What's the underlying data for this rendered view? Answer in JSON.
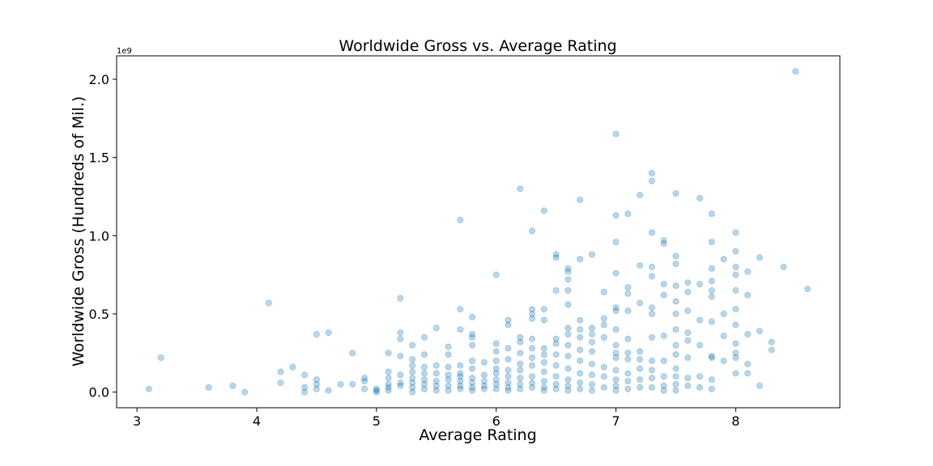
{
  "chart_data": {
    "type": "scatter",
    "title": "Worldwide Gross vs. Average Rating",
    "xlabel": "Average Rating",
    "ylabel": "Worldwide Gross (Hundreds of Mil.)",
    "y_offset_label": "1e9",
    "xlim": [
      2.83,
      8.87
    ],
    "ylim": [
      -0.1,
      2.15
    ],
    "x_ticks": [
      3,
      4,
      5,
      6,
      7,
      8
    ],
    "y_ticks": [
      0.0,
      0.5,
      1.0,
      1.5,
      2.0
    ],
    "x_tick_labels": [
      "3",
      "4",
      "5",
      "6",
      "7",
      "8"
    ],
    "y_tick_labels": [
      "0.0",
      "0.5",
      "1.0",
      "1.5",
      "2.0"
    ],
    "grid": false,
    "legend": "none",
    "point_color": "#1f77b4",
    "point_alpha": 0.3,
    "points": [
      [
        3.1,
        0.02
      ],
      [
        3.2,
        0.22
      ],
      [
        3.6,
        0.03
      ],
      [
        3.8,
        0.04
      ],
      [
        3.9,
        0.0
      ],
      [
        4.1,
        0.57
      ],
      [
        4.2,
        0.06
      ],
      [
        4.2,
        0.13
      ],
      [
        4.3,
        0.16
      ],
      [
        4.4,
        0.11
      ],
      [
        4.4,
        0.03
      ],
      [
        4.4,
        0.0
      ],
      [
        4.5,
        0.37
      ],
      [
        4.5,
        0.08
      ],
      [
        4.5,
        0.05
      ],
      [
        4.5,
        0.02
      ],
      [
        4.6,
        0.38
      ],
      [
        4.6,
        0.01
      ],
      [
        4.7,
        0.05
      ],
      [
        4.8,
        0.25
      ],
      [
        4.8,
        0.05
      ],
      [
        4.9,
        0.09
      ],
      [
        4.9,
        0.07
      ],
      [
        4.9,
        0.02
      ],
      [
        5.0,
        0.02
      ],
      [
        5.0,
        0.01
      ],
      [
        5.0,
        0.0
      ],
      [
        5.1,
        0.25
      ],
      [
        5.1,
        0.13
      ],
      [
        5.1,
        0.09
      ],
      [
        5.1,
        0.05
      ],
      [
        5.1,
        0.03
      ],
      [
        5.1,
        0.01
      ],
      [
        5.2,
        0.6
      ],
      [
        5.2,
        0.38
      ],
      [
        5.2,
        0.34
      ],
      [
        5.2,
        0.23
      ],
      [
        5.2,
        0.11
      ],
      [
        5.2,
        0.06
      ],
      [
        5.2,
        0.04
      ],
      [
        5.3,
        0.3
      ],
      [
        5.3,
        0.21
      ],
      [
        5.3,
        0.17
      ],
      [
        5.3,
        0.13
      ],
      [
        5.3,
        0.09
      ],
      [
        5.3,
        0.06
      ],
      [
        5.3,
        0.03
      ],
      [
        5.3,
        0.0
      ],
      [
        5.4,
        0.35
      ],
      [
        5.4,
        0.24
      ],
      [
        5.4,
        0.16
      ],
      [
        5.4,
        0.12
      ],
      [
        5.4,
        0.08
      ],
      [
        5.4,
        0.05
      ],
      [
        5.4,
        0.02
      ],
      [
        5.5,
        0.41
      ],
      [
        5.5,
        0.17
      ],
      [
        5.5,
        0.12
      ],
      [
        5.5,
        0.07
      ],
      [
        5.5,
        0.04
      ],
      [
        5.5,
        0.01
      ],
      [
        5.6,
        0.29
      ],
      [
        5.6,
        0.24
      ],
      [
        5.6,
        0.16
      ],
      [
        5.6,
        0.11
      ],
      [
        5.6,
        0.08
      ],
      [
        5.6,
        0.04
      ],
      [
        5.6,
        0.01
      ],
      [
        5.7,
        1.1
      ],
      [
        5.7,
        0.53
      ],
      [
        5.7,
        0.4
      ],
      [
        5.7,
        0.17
      ],
      [
        5.7,
        0.12
      ],
      [
        5.7,
        0.1
      ],
      [
        5.7,
        0.07
      ],
      [
        5.7,
        0.04
      ],
      [
        5.7,
        0.02
      ],
      [
        5.8,
        0.48
      ],
      [
        5.8,
        0.37
      ],
      [
        5.8,
        0.35
      ],
      [
        5.8,
        0.3
      ],
      [
        5.8,
        0.2
      ],
      [
        5.8,
        0.15
      ],
      [
        5.8,
        0.09
      ],
      [
        5.8,
        0.06
      ],
      [
        5.8,
        0.03
      ],
      [
        5.8,
        0.01
      ],
      [
        5.9,
        0.19
      ],
      [
        5.9,
        0.11
      ],
      [
        5.9,
        0.07
      ],
      [
        5.9,
        0.04
      ],
      [
        5.9,
        0.02
      ],
      [
        6.0,
        0.75
      ],
      [
        6.0,
        0.31
      ],
      [
        6.0,
        0.26
      ],
      [
        6.0,
        0.2
      ],
      [
        6.0,
        0.15
      ],
      [
        6.0,
        0.12
      ],
      [
        6.0,
        0.08
      ],
      [
        6.0,
        0.05
      ],
      [
        6.0,
        0.02
      ],
      [
        6.1,
        0.46
      ],
      [
        6.1,
        0.43
      ],
      [
        6.1,
        0.28
      ],
      [
        6.1,
        0.21
      ],
      [
        6.1,
        0.14
      ],
      [
        6.1,
        0.1
      ],
      [
        6.1,
        0.06
      ],
      [
        6.1,
        0.03
      ],
      [
        6.1,
        0.01
      ],
      [
        6.2,
        1.3
      ],
      [
        6.2,
        0.35
      ],
      [
        6.2,
        0.32
      ],
      [
        6.2,
        0.25
      ],
      [
        6.2,
        0.18
      ],
      [
        6.2,
        0.14
      ],
      [
        6.2,
        0.09
      ],
      [
        6.2,
        0.05
      ],
      [
        6.2,
        0.02
      ],
      [
        6.3,
        1.03
      ],
      [
        6.3,
        0.53
      ],
      [
        6.3,
        0.5
      ],
      [
        6.3,
        0.47
      ],
      [
        6.3,
        0.34
      ],
      [
        6.3,
        0.28
      ],
      [
        6.3,
        0.22
      ],
      [
        6.3,
        0.17
      ],
      [
        6.3,
        0.1
      ],
      [
        6.3,
        0.06
      ],
      [
        6.3,
        0.03
      ],
      [
        6.4,
        1.16
      ],
      [
        6.4,
        0.53
      ],
      [
        6.4,
        0.46
      ],
      [
        6.4,
        0.28
      ],
      [
        6.4,
        0.24
      ],
      [
        6.4,
        0.19
      ],
      [
        6.4,
        0.13
      ],
      [
        6.4,
        0.07
      ],
      [
        6.4,
        0.03
      ],
      [
        6.4,
        0.01
      ],
      [
        6.5,
        0.88
      ],
      [
        6.5,
        0.86
      ],
      [
        6.5,
        0.65
      ],
      [
        6.5,
        0.34
      ],
      [
        6.5,
        0.31
      ],
      [
        6.5,
        0.24
      ],
      [
        6.5,
        0.17
      ],
      [
        6.5,
        0.1
      ],
      [
        6.5,
        0.05
      ],
      [
        6.5,
        0.02
      ],
      [
        6.6,
        0.79
      ],
      [
        6.6,
        0.77
      ],
      [
        6.6,
        0.72
      ],
      [
        6.6,
        0.65
      ],
      [
        6.6,
        0.56
      ],
      [
        6.6,
        0.41
      ],
      [
        6.6,
        0.37
      ],
      [
        6.6,
        0.3
      ],
      [
        6.6,
        0.23
      ],
      [
        6.6,
        0.15
      ],
      [
        6.6,
        0.08
      ],
      [
        6.6,
        0.04
      ],
      [
        6.6,
        0.01
      ],
      [
        6.7,
        1.23
      ],
      [
        6.7,
        0.85
      ],
      [
        6.7,
        0.46
      ],
      [
        6.7,
        0.4
      ],
      [
        6.7,
        0.35
      ],
      [
        6.7,
        0.27
      ],
      [
        6.7,
        0.2
      ],
      [
        6.7,
        0.12
      ],
      [
        6.7,
        0.06
      ],
      [
        6.7,
        0.02
      ],
      [
        6.8,
        0.88
      ],
      [
        6.8,
        0.41
      ],
      [
        6.8,
        0.37
      ],
      [
        6.8,
        0.32
      ],
      [
        6.8,
        0.26
      ],
      [
        6.8,
        0.18
      ],
      [
        6.8,
        0.11
      ],
      [
        6.8,
        0.05
      ],
      [
        6.8,
        0.01
      ],
      [
        6.9,
        0.64
      ],
      [
        6.9,
        0.47
      ],
      [
        6.9,
        0.43
      ],
      [
        6.9,
        0.35
      ],
      [
        6.9,
        0.16
      ],
      [
        6.9,
        0.1
      ],
      [
        6.9,
        0.03
      ],
      [
        7.0,
        1.65
      ],
      [
        7.0,
        1.13
      ],
      [
        7.0,
        0.96
      ],
      [
        7.0,
        0.76
      ],
      [
        7.0,
        0.54
      ],
      [
        7.0,
        0.52
      ],
      [
        7.0,
        0.4
      ],
      [
        7.0,
        0.3
      ],
      [
        7.0,
        0.25
      ],
      [
        7.0,
        0.22
      ],
      [
        7.0,
        0.14
      ],
      [
        7.0,
        0.08
      ],
      [
        7.0,
        0.04
      ],
      [
        7.0,
        0.01
      ],
      [
        7.1,
        1.14
      ],
      [
        7.1,
        0.67
      ],
      [
        7.1,
        0.63
      ],
      [
        7.1,
        0.52
      ],
      [
        7.1,
        0.34
      ],
      [
        7.1,
        0.25
      ],
      [
        7.1,
        0.21
      ],
      [
        7.1,
        0.12
      ],
      [
        7.1,
        0.07
      ],
      [
        7.1,
        0.02
      ],
      [
        7.2,
        1.26
      ],
      [
        7.2,
        0.81
      ],
      [
        7.2,
        0.57
      ],
      [
        7.2,
        0.26
      ],
      [
        7.2,
        0.21
      ],
      [
        7.2,
        0.15
      ],
      [
        7.2,
        0.08
      ],
      [
        7.2,
        0.03
      ],
      [
        7.3,
        1.4
      ],
      [
        7.3,
        1.35
      ],
      [
        7.3,
        1.02
      ],
      [
        7.3,
        0.8
      ],
      [
        7.3,
        0.74
      ],
      [
        7.3,
        0.54
      ],
      [
        7.3,
        0.5
      ],
      [
        7.3,
        0.35
      ],
      [
        7.3,
        0.2
      ],
      [
        7.3,
        0.14
      ],
      [
        7.3,
        0.09
      ],
      [
        7.3,
        0.03
      ],
      [
        7.4,
        0.97
      ],
      [
        7.4,
        0.95
      ],
      [
        7.4,
        0.69
      ],
      [
        7.4,
        0.62
      ],
      [
        7.4,
        0.36
      ],
      [
        7.4,
        0.2
      ],
      [
        7.4,
        0.1
      ],
      [
        7.4,
        0.04
      ],
      [
        7.4,
        0.01
      ],
      [
        7.5,
        1.27
      ],
      [
        7.5,
        0.87
      ],
      [
        7.5,
        0.82
      ],
      [
        7.5,
        0.68
      ],
      [
        7.5,
        0.58
      ],
      [
        7.5,
        0.5
      ],
      [
        7.5,
        0.4
      ],
      [
        7.5,
        0.3
      ],
      [
        7.5,
        0.24
      ],
      [
        7.5,
        0.15
      ],
      [
        7.5,
        0.1
      ],
      [
        7.5,
        0.05
      ],
      [
        7.5,
        0.01
      ],
      [
        7.6,
        0.7
      ],
      [
        7.6,
        0.64
      ],
      [
        7.6,
        0.52
      ],
      [
        7.6,
        0.38
      ],
      [
        7.6,
        0.33
      ],
      [
        7.6,
        0.22
      ],
      [
        7.6,
        0.09
      ],
      [
        7.6,
        0.04
      ],
      [
        7.7,
        1.24
      ],
      [
        7.7,
        0.69
      ],
      [
        7.7,
        0.46
      ],
      [
        7.7,
        0.3
      ],
      [
        7.7,
        0.1
      ],
      [
        7.7,
        0.03
      ],
      [
        7.8,
        1.14
      ],
      [
        7.8,
        0.96
      ],
      [
        7.8,
        0.79
      ],
      [
        7.8,
        0.71
      ],
      [
        7.8,
        0.65
      ],
      [
        7.8,
        0.61
      ],
      [
        7.8,
        0.45
      ],
      [
        7.8,
        0.23
      ],
      [
        7.8,
        0.22
      ],
      [
        7.8,
        0.08
      ],
      [
        7.8,
        0.02
      ],
      [
        7.9,
        0.85
      ],
      [
        7.9,
        0.5
      ],
      [
        7.9,
        0.36
      ],
      [
        7.9,
        0.2
      ],
      [
        8.0,
        1.02
      ],
      [
        8.0,
        0.9
      ],
      [
        8.0,
        0.8
      ],
      [
        8.0,
        0.75
      ],
      [
        8.0,
        0.65
      ],
      [
        8.0,
        0.53
      ],
      [
        8.0,
        0.43
      ],
      [
        8.0,
        0.31
      ],
      [
        8.0,
        0.25
      ],
      [
        8.0,
        0.22
      ],
      [
        8.0,
        0.12
      ],
      [
        8.1,
        0.77
      ],
      [
        8.1,
        0.62
      ],
      [
        8.1,
        0.37
      ],
      [
        8.1,
        0.18
      ],
      [
        8.1,
        0.12
      ],
      [
        8.2,
        0.86
      ],
      [
        8.2,
        0.39
      ],
      [
        8.2,
        0.04
      ],
      [
        8.3,
        0.32
      ],
      [
        8.3,
        0.27
      ],
      [
        8.4,
        0.8
      ],
      [
        8.5,
        2.05
      ],
      [
        8.6,
        0.66
      ]
    ]
  }
}
